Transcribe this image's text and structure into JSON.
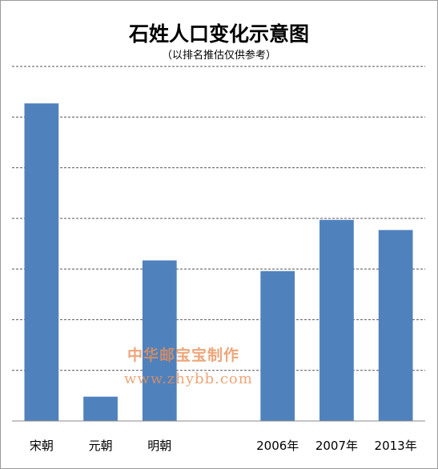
{
  "chart_data": {
    "type": "bar",
    "title": "石姓人口变化示意图",
    "subtitle": "（以排名推估仅供参考）",
    "categories": [
      "宋朝",
      "元朝",
      "明朝",
      "",
      "2006年",
      "2007年",
      "2013年"
    ],
    "values": [
      6.27,
      0.48,
      3.17,
      null,
      2.96,
      3.97,
      3.77
    ],
    "ylim": [
      0,
      7
    ],
    "grid": true,
    "legend": "none",
    "bar_color": "#4f81bd"
  },
  "watermark": {
    "line1": "中华邮宝宝制作",
    "line2": "www.zhybb.com"
  }
}
